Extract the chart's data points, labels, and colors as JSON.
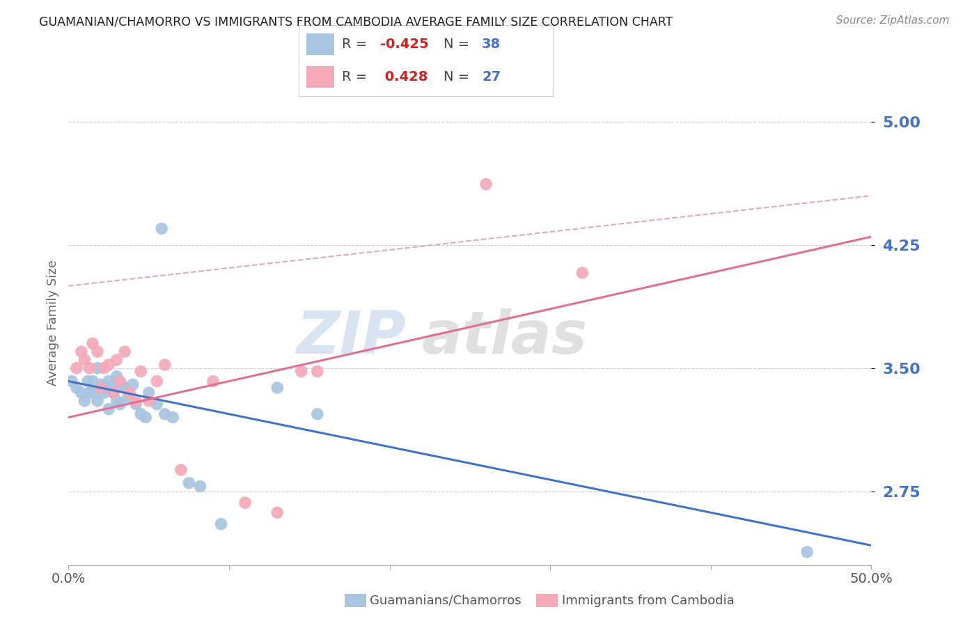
{
  "title": "GUAMANIAN/CHAMORRO VS IMMIGRANTS FROM CAMBODIA AVERAGE FAMILY SIZE CORRELATION CHART",
  "source": "Source: ZipAtlas.com",
  "ylabel": "Average Family Size",
  "yticks": [
    2.75,
    3.5,
    4.25,
    5.0
  ],
  "xlim": [
    0.0,
    0.5
  ],
  "ylim": [
    2.3,
    5.25
  ],
  "blue_scatter_x": [
    0.002,
    0.005,
    0.008,
    0.01,
    0.012,
    0.013,
    0.015,
    0.015,
    0.018,
    0.018,
    0.02,
    0.022,
    0.023,
    0.025,
    0.025,
    0.027,
    0.028,
    0.03,
    0.03,
    0.032,
    0.033,
    0.035,
    0.037,
    0.04,
    0.042,
    0.045,
    0.048,
    0.05,
    0.055,
    0.058,
    0.06,
    0.065,
    0.075,
    0.082,
    0.095,
    0.13,
    0.155,
    0.46
  ],
  "blue_scatter_y": [
    3.42,
    3.38,
    3.35,
    3.3,
    3.42,
    3.35,
    3.42,
    3.35,
    3.5,
    3.3,
    3.4,
    3.35,
    3.38,
    3.42,
    3.25,
    3.38,
    3.35,
    3.45,
    3.3,
    3.28,
    3.4,
    3.38,
    3.32,
    3.4,
    3.28,
    3.22,
    3.2,
    3.35,
    3.28,
    4.35,
    3.22,
    3.2,
    2.8,
    2.78,
    2.55,
    3.38,
    3.22,
    2.38
  ],
  "pink_scatter_x": [
    0.005,
    0.008,
    0.01,
    0.013,
    0.015,
    0.018,
    0.02,
    0.022,
    0.025,
    0.028,
    0.03,
    0.032,
    0.035,
    0.038,
    0.042,
    0.045,
    0.05,
    0.055,
    0.06,
    0.07,
    0.09,
    0.11,
    0.13,
    0.145,
    0.155,
    0.32,
    0.26
  ],
  "pink_scatter_y": [
    3.5,
    3.6,
    3.55,
    3.5,
    3.65,
    3.6,
    3.38,
    3.5,
    3.52,
    3.35,
    3.55,
    3.42,
    3.6,
    3.35,
    3.3,
    3.48,
    3.3,
    3.42,
    3.52,
    2.88,
    3.42,
    2.68,
    2.62,
    3.48,
    3.48,
    4.08,
    4.62
  ],
  "blue_line_x": [
    0.0,
    0.5
  ],
  "blue_line_y": [
    3.42,
    2.42
  ],
  "pink_line_x": [
    0.0,
    0.5
  ],
  "pink_line_y": [
    3.2,
    4.3
  ],
  "pink_dashed_line_x": [
    0.0,
    0.5
  ],
  "pink_dashed_line_y": [
    4.0,
    4.55
  ],
  "background_color": "#ffffff",
  "grid_color": "#cccccc",
  "title_color": "#222222",
  "source_color": "#888888",
  "ytick_color": "#4472c4",
  "scatter_blue_color": "#a8c4e0",
  "scatter_pink_color": "#f4a8b8",
  "line_blue_color": "#4472c4",
  "line_pink_color": "#e07090",
  "line_pink_dashed_color": "#e0a8b8",
  "legend_blue_r": "-0.425",
  "legend_blue_n": "38",
  "legend_pink_r": "0.428",
  "legend_pink_n": "27",
  "watermark_zip_color": "#b8cfe8",
  "watermark_atlas_color": "#c8c8c8"
}
